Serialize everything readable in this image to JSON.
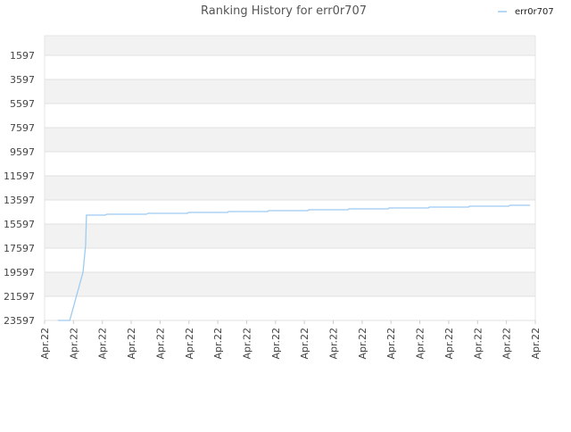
{
  "chart_data": {
    "type": "line",
    "title": "Ranking History for err0r707",
    "x": [
      0.46,
      0.87,
      1.33,
      1.42,
      1.45,
      2.1,
      2.16,
      3.53,
      3.58,
      4.95,
      4.98,
      6.34,
      6.37,
      7.73,
      7.76,
      9.12,
      9.15,
      10.51,
      10.54,
      11.9,
      11.93,
      13.3,
      13.33,
      14.69,
      14.72,
      16.08,
      16.11,
      16.82
    ],
    "series": [
      {
        "name": "err0r707",
        "color": "#9ecbf0",
        "values": [
          23597,
          23597,
          19597,
          17375,
          14856,
          14856,
          14782,
          14782,
          14708,
          14708,
          14634,
          14634,
          14560,
          14560,
          14486,
          14486,
          14412,
          14412,
          14338,
          14338,
          14264,
          14264,
          14190,
          14190,
          14116,
          14116,
          14041,
          14041
        ]
      }
    ],
    "xlim": [
      0,
      17
    ],
    "xticks": [
      {
        "value": 0,
        "label": "Apr.22"
      },
      {
        "value": 1,
        "label": "Apr.22"
      },
      {
        "value": 2,
        "label": "Apr.22"
      },
      {
        "value": 3,
        "label": "Apr.22"
      },
      {
        "value": 4,
        "label": "Apr.22"
      },
      {
        "value": 5,
        "label": "Apr.22"
      },
      {
        "value": 6,
        "label": "Apr.22"
      },
      {
        "value": 7,
        "label": "Apr.22"
      },
      {
        "value": 8,
        "label": "Apr.22"
      },
      {
        "value": 9,
        "label": "Apr.22"
      },
      {
        "value": 10,
        "label": "Apr.22"
      },
      {
        "value": 11,
        "label": "Apr.22"
      },
      {
        "value": 12,
        "label": "Apr.22"
      },
      {
        "value": 13,
        "label": "Apr.22"
      },
      {
        "value": 14,
        "label": "Apr.22"
      },
      {
        "value": 15,
        "label": "Apr.22"
      },
      {
        "value": 16,
        "label": "Apr.22"
      },
      {
        "value": 17,
        "label": "Apr.22"
      }
    ],
    "ylim": [
      -33,
      23597
    ],
    "y_inverted": true,
    "yticks": [
      1597,
      3597,
      5597,
      7597,
      9597,
      11597,
      13597,
      15597,
      17597,
      19597,
      21597,
      23597
    ],
    "grid": true,
    "legend": "top-right"
  }
}
